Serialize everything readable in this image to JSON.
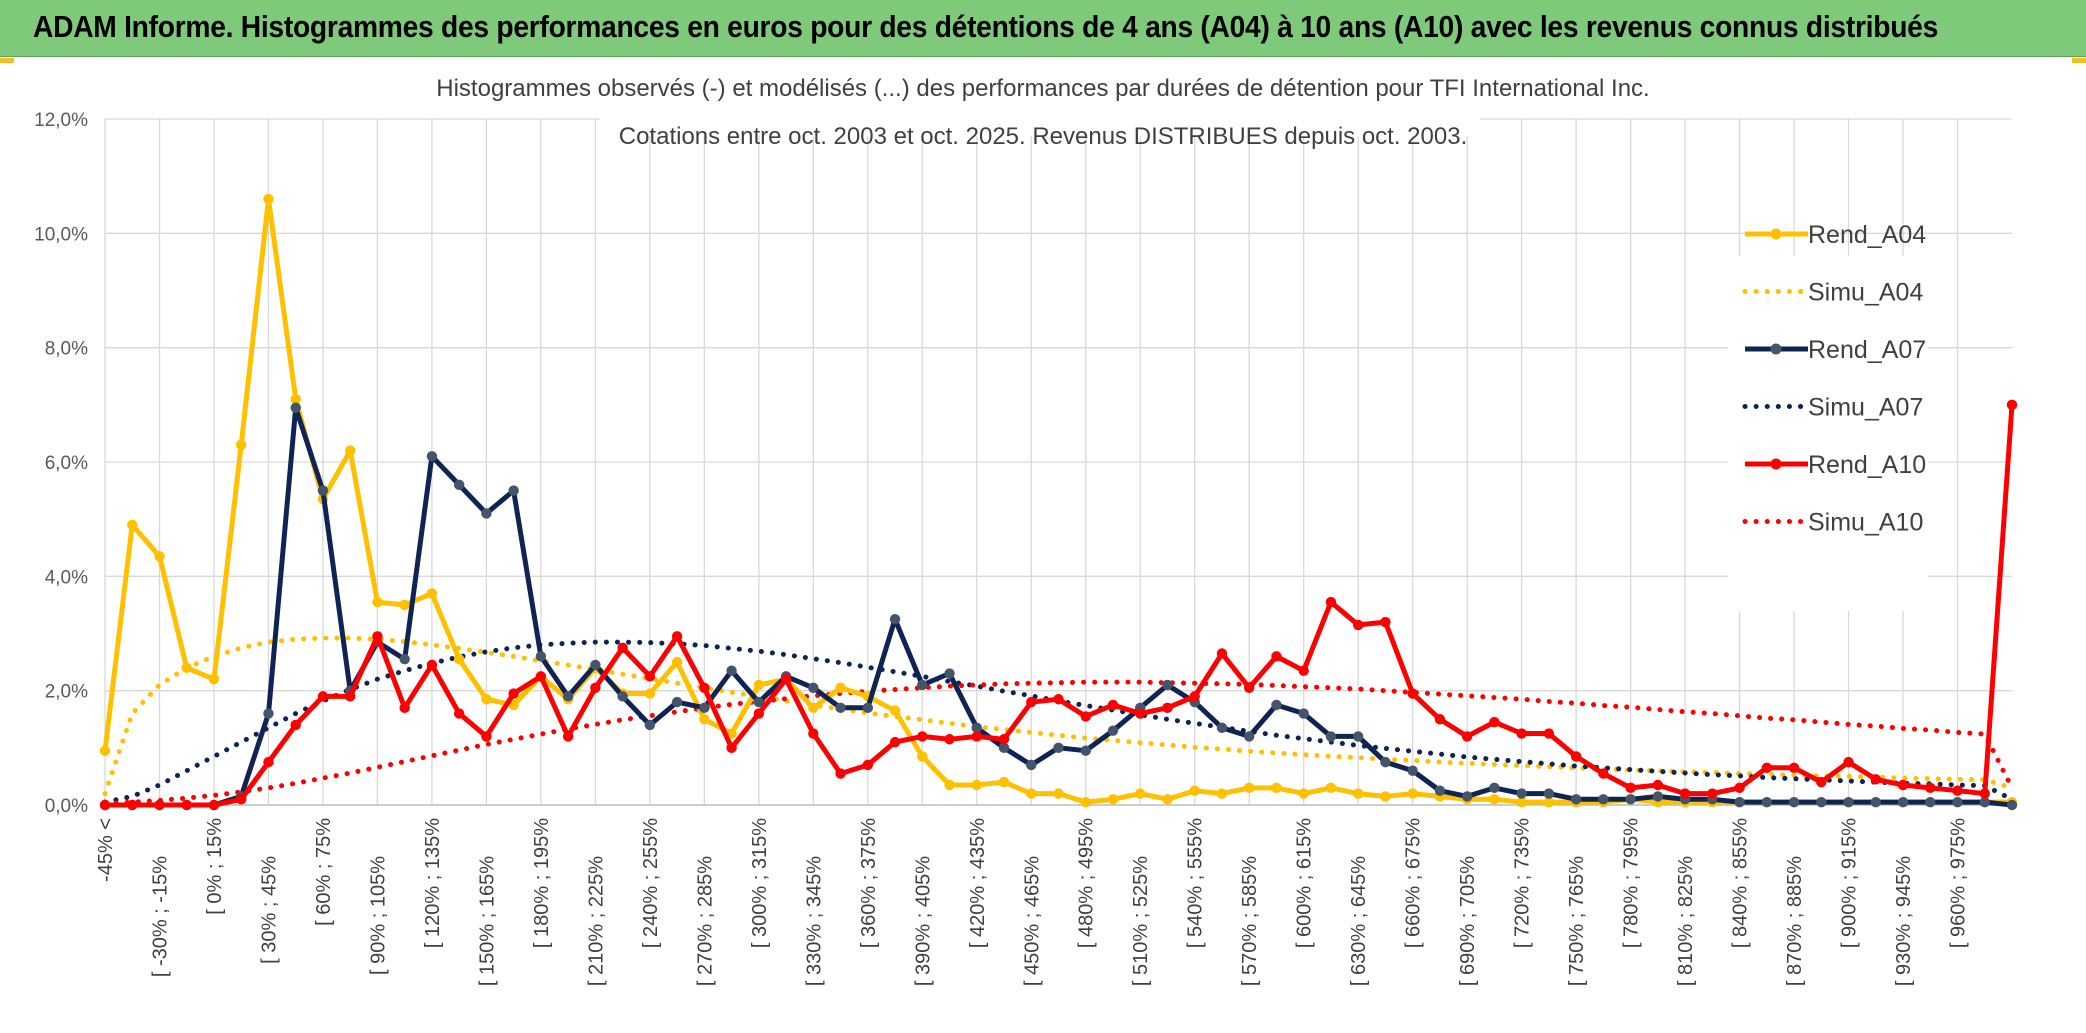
{
  "banner": {
    "title": "ADAM Informe. Histogrammes des performances en euros pour des détentions de 4 ans (A04) à 10 ans (A10) avec les revenus connus distribués",
    "color": "#7fc97b"
  },
  "chart_data": {
    "type": "line",
    "title": "Histogrammes observés (-) et modélisés (...) des performances par durées de détention pour TFI International Inc.",
    "subtitle": "Cotations entre oct. 2003 et oct. 2025. Revenus DISTRIBUES depuis oct. 2003.",
    "xlabel": "",
    "ylabel": "",
    "ylim": [
      0,
      12
    ],
    "yticks": [
      "0,0%",
      "2,0%",
      "4,0%",
      "6,0%",
      "8,0%",
      "10,0%",
      "12,0%"
    ],
    "grid": true,
    "legend_position": "right",
    "x_labels": [
      "-45% <",
      "[ -30% ; -15%",
      "[ 0% ; 15%",
      "[ 30% ; 45%",
      "[ 60% ; 75%",
      "[ 90% ; 105%",
      "[ 120% ; 135%",
      "[ 150% ; 165%",
      "[ 180% ; 195%",
      "[ 210% ; 225%",
      "[ 240% ; 255%",
      "[ 270% ; 285%",
      "[ 300% ; 315%",
      "[ 330% ; 345%",
      "[ 360% ; 375%",
      "[ 390% ; 405%",
      "[ 420% ; 435%",
      "[ 450% ; 465%",
      "[ 480% ; 495%",
      "[ 510% ; 525%",
      "[ 540% ; 555%",
      "[ 570% ; 585%",
      "[ 600% ; 615%",
      "[ 630% ; 645%",
      "[ 660% ; 675%",
      "[ 690% ; 705%",
      "[ 720% ; 735%",
      "[ 750% ; 765%",
      "[ 780% ; 795%",
      "[ 810% ; 825%",
      "[ 840% ; 855%",
      "[ 870% ; 885%",
      "[ 900% ; 915%",
      "[ 930% ; 945%",
      "[ 960% ; 975%"
    ],
    "series": [
      {
        "name": "Rend_A04",
        "style": "solid",
        "color": "#ffc000",
        "markers": true,
        "values": [
          0.95,
          4.9,
          4.35,
          2.4,
          2.2,
          6.3,
          10.6,
          7.1,
          5.35,
          6.2,
          3.55,
          3.5,
          3.7,
          2.55,
          1.85,
          1.75,
          2.25,
          1.85,
          2.4,
          1.95,
          1.95,
          2.5,
          1.5,
          1.25,
          2.1,
          2.2,
          1.7,
          2.05,
          1.9,
          1.65,
          0.85,
          0.35,
          0.35,
          0.4,
          0.2,
          0.2,
          0.05,
          0.1,
          0.2,
          0.1,
          0.25,
          0.2,
          0.3,
          0.3,
          0.2,
          0.3,
          0.2,
          0.15,
          0.2,
          0.15,
          0.1,
          0.1,
          0.05,
          0.05,
          0.05,
          0.05,
          0.1,
          0.05,
          0.05,
          0.05,
          0.05,
          0.05,
          0.05,
          0.05,
          0.05,
          0.05,
          0.05,
          0.05,
          0.05,
          0.05,
          0.05
        ]
      },
      {
        "name": "Simu_A04",
        "style": "dotted",
        "color": "#ffc000",
        "markers": false,
        "values": [
          0.2,
          1.6,
          2.1,
          2.4,
          2.6,
          2.75,
          2.85,
          2.9,
          2.92,
          2.92,
          2.9,
          2.86,
          2.8,
          2.74,
          2.67,
          2.6,
          2.52,
          2.45,
          2.37,
          2.29,
          2.21,
          2.13,
          2.05,
          1.97,
          1.9,
          1.82,
          1.75,
          1.68,
          1.61,
          1.55,
          1.49,
          1.43,
          1.37,
          1.32,
          1.27,
          1.22,
          1.17,
          1.13,
          1.09,
          1.05,
          1.01,
          0.98,
          0.94,
          0.91,
          0.88,
          0.85,
          0.83,
          0.8,
          0.78,
          0.75,
          0.73,
          0.71,
          0.69,
          0.67,
          0.65,
          0.63,
          0.61,
          0.6,
          0.58,
          0.57,
          0.55,
          0.54,
          0.52,
          0.51,
          0.5,
          0.49,
          0.47,
          0.46,
          0.45,
          0.44,
          0.3
        ]
      },
      {
        "name": "Rend_A07",
        "style": "solid",
        "color": "#0f2454",
        "markers": true,
        "values": [
          0,
          0,
          0,
          0,
          0,
          0.15,
          1.6,
          6.95,
          5.5,
          2.0,
          2.85,
          2.55,
          6.1,
          5.6,
          5.1,
          5.5,
          2.6,
          1.9,
          2.45,
          1.9,
          1.4,
          1.8,
          1.7,
          2.35,
          1.8,
          2.25,
          2.05,
          1.7,
          1.7,
          3.25,
          2.1,
          2.3,
          1.35,
          1.0,
          0.7,
          1.0,
          0.95,
          1.3,
          1.7,
          2.1,
          1.8,
          1.35,
          1.2,
          1.75,
          1.6,
          1.2,
          1.2,
          0.75,
          0.6,
          0.25,
          0.15,
          0.3,
          0.2,
          0.2,
          0.1,
          0.1,
          0.1,
          0.15,
          0.1,
          0.1,
          0.05,
          0.05,
          0.05,
          0.05,
          0.05,
          0.05,
          0.05,
          0.05,
          0.05,
          0.05,
          0
        ]
      },
      {
        "name": "Simu_A07",
        "style": "dotted",
        "color": "#0f2454",
        "markers": false,
        "values": [
          0.05,
          0.15,
          0.35,
          0.6,
          0.85,
          1.1,
          1.35,
          1.6,
          1.82,
          2.02,
          2.2,
          2.35,
          2.48,
          2.59,
          2.68,
          2.75,
          2.8,
          2.83,
          2.85,
          2.85,
          2.84,
          2.82,
          2.79,
          2.74,
          2.69,
          2.63,
          2.56,
          2.49,
          2.41,
          2.33,
          2.25,
          2.16,
          2.08,
          1.99,
          1.91,
          1.82,
          1.74,
          1.66,
          1.58,
          1.5,
          1.43,
          1.36,
          1.29,
          1.22,
          1.16,
          1.1,
          1.04,
          0.99,
          0.94,
          0.89,
          0.84,
          0.8,
          0.76,
          0.72,
          0.68,
          0.65,
          0.62,
          0.59,
          0.56,
          0.53,
          0.51,
          0.48,
          0.46,
          0.44,
          0.42,
          0.4,
          0.38,
          0.37,
          0.35,
          0.34,
          0.1
        ]
      },
      {
        "name": "Rend_A10",
        "style": "solid",
        "color": "#ff0000",
        "markers": true,
        "values": [
          0,
          0,
          0,
          0,
          0,
          0.1,
          0.75,
          1.4,
          1.9,
          1.9,
          2.95,
          1.7,
          2.45,
          1.6,
          1.2,
          1.95,
          2.25,
          1.2,
          2.05,
          2.75,
          2.25,
          2.95,
          2.05,
          1.0,
          1.6,
          2.2,
          1.25,
          0.55,
          0.7,
          1.1,
          1.2,
          1.15,
          1.2,
          1.15,
          1.8,
          1.85,
          1.55,
          1.75,
          1.6,
          1.7,
          1.9,
          2.65,
          2.05,
          2.6,
          2.35,
          3.55,
          3.15,
          3.2,
          1.95,
          1.5,
          1.2,
          1.45,
          1.25,
          1.25,
          0.85,
          0.55,
          0.3,
          0.35,
          0.2,
          0.2,
          0.3,
          0.65,
          0.65,
          0.4,
          0.75,
          0.45,
          0.35,
          0.3,
          0.25,
          0.2,
          7.0
        ]
      },
      {
        "name": "Simu_A10",
        "style": "dotted",
        "color": "#ff0000",
        "markers": false,
        "values": [
          0.02,
          0.05,
          0.08,
          0.12,
          0.17,
          0.23,
          0.3,
          0.38,
          0.47,
          0.56,
          0.66,
          0.76,
          0.86,
          0.96,
          1.06,
          1.15,
          1.24,
          1.33,
          1.41,
          1.49,
          1.56,
          1.63,
          1.7,
          1.76,
          1.81,
          1.86,
          1.91,
          1.95,
          1.99,
          2.02,
          2.05,
          2.08,
          2.1,
          2.12,
          2.13,
          2.14,
          2.15,
          2.15,
          2.15,
          2.14,
          2.13,
          2.12,
          2.11,
          2.09,
          2.07,
          2.05,
          2.03,
          2.0,
          1.97,
          1.94,
          1.91,
          1.88,
          1.85,
          1.81,
          1.78,
          1.74,
          1.71,
          1.67,
          1.63,
          1.6,
          1.56,
          1.52,
          1.49,
          1.45,
          1.41,
          1.38,
          1.34,
          1.31,
          1.27,
          1.24,
          0.3
        ]
      }
    ]
  }
}
